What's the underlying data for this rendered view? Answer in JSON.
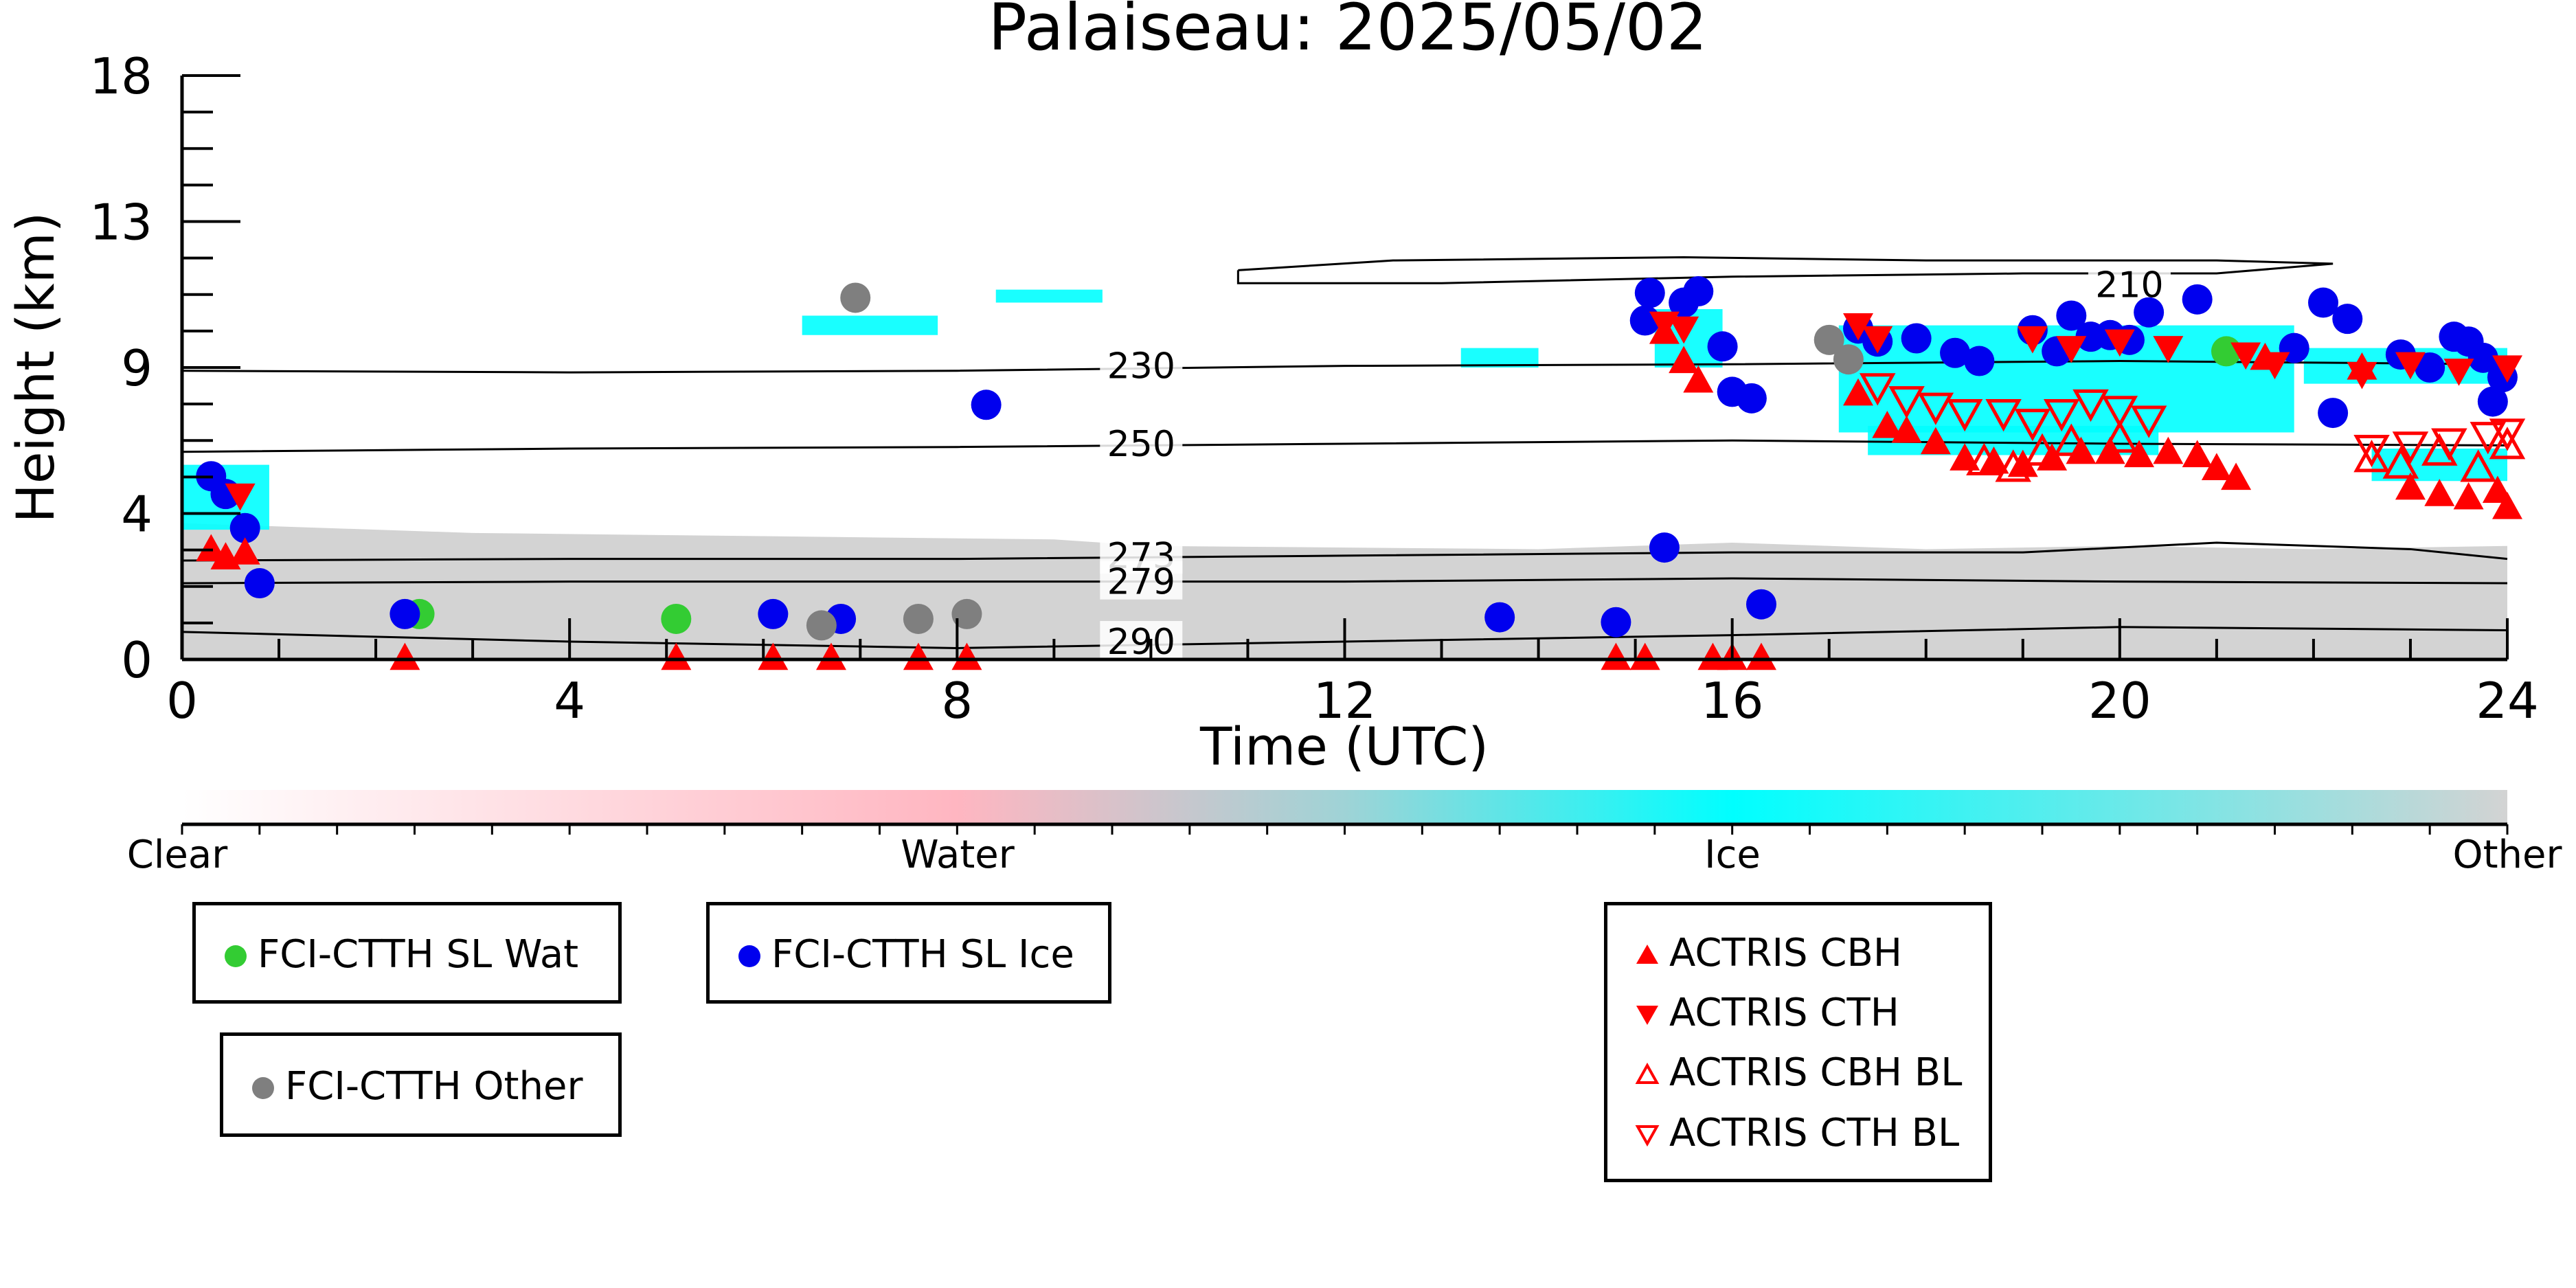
{
  "chart_data": {
    "type": "scatter",
    "title": "Palaiseau: 2025/05/02",
    "xlabel": "Time (UTC)",
    "ylabel": "Height (km)",
    "xlim": [
      0,
      24
    ],
    "ylim": [
      0,
      18
    ],
    "x_ticks": [
      "0",
      "4",
      "8",
      "12",
      "16",
      "20",
      "24"
    ],
    "y_ticks": [
      "0",
      "4",
      "9",
      "13",
      "18"
    ],
    "x_tick_values": [
      0,
      4,
      8,
      12,
      16,
      20,
      24
    ],
    "y_tick_values": [
      0,
      4.5,
      9,
      13.5,
      18
    ],
    "grid": false,
    "colorbar": {
      "labels": [
        "Clear",
        "Water",
        "Ice",
        "Other"
      ],
      "colors": [
        "#ffffff",
        "#ffb6c1",
        "#00ffff",
        "#d3d3d3"
      ]
    },
    "contours": [
      {
        "label": "210",
        "points": [
          [
            10.9,
            12.0
          ],
          [
            12.5,
            12.3
          ],
          [
            15.5,
            12.4
          ],
          [
            18.0,
            12.3
          ],
          [
            21.0,
            12.3
          ],
          [
            22.2,
            12.2
          ],
          [
            21.0,
            11.9
          ],
          [
            19.0,
            11.9
          ],
          [
            16.0,
            11.8
          ],
          [
            13.0,
            11.6
          ],
          [
            10.9,
            11.6
          ],
          [
            10.9,
            12.0
          ]
        ]
      },
      {
        "label": "230",
        "points": [
          [
            0,
            8.9
          ],
          [
            4,
            8.85
          ],
          [
            8,
            8.9
          ],
          [
            12,
            9.05
          ],
          [
            16,
            9.1
          ],
          [
            20,
            9.2
          ],
          [
            24,
            9.1
          ]
        ]
      },
      {
        "label": "250",
        "points": [
          [
            0,
            6.4
          ],
          [
            4,
            6.5
          ],
          [
            8,
            6.55
          ],
          [
            12,
            6.65
          ],
          [
            16,
            6.75
          ],
          [
            20,
            6.65
          ],
          [
            24,
            6.6
          ]
        ]
      },
      {
        "label": "273",
        "points": [
          [
            0,
            3.05
          ],
          [
            4,
            3.1
          ],
          [
            8,
            3.1
          ],
          [
            12,
            3.2
          ],
          [
            16,
            3.3
          ],
          [
            19,
            3.3
          ],
          [
            21,
            3.6
          ],
          [
            23,
            3.4
          ],
          [
            24,
            3.1
          ]
        ]
      },
      {
        "label": "279",
        "points": [
          [
            0,
            2.35
          ],
          [
            4,
            2.4
          ],
          [
            8,
            2.4
          ],
          [
            12,
            2.4
          ],
          [
            16,
            2.5
          ],
          [
            20,
            2.4
          ],
          [
            24,
            2.35
          ]
        ]
      },
      {
        "label": "290",
        "points": [
          [
            0,
            0.85
          ],
          [
            4,
            0.55
          ],
          [
            8,
            0.35
          ],
          [
            12,
            0.55
          ],
          [
            16,
            0.75
          ],
          [
            20,
            1.0
          ],
          [
            24,
            0.9
          ]
        ]
      }
    ],
    "series": [
      {
        "name": "FCI-CTTH SL Wat",
        "marker": "circle",
        "color": "#33cc33",
        "points": [
          [
            2.45,
            1.4
          ],
          [
            5.1,
            1.25
          ],
          [
            21.1,
            9.5
          ]
        ]
      },
      {
        "name": "FCI-CTTH SL Ice",
        "marker": "circle",
        "color": "#0000ee",
        "points": [
          [
            0.3,
            5.65
          ],
          [
            0.45,
            5.1
          ],
          [
            0.65,
            4.05
          ],
          [
            0.8,
            2.35
          ],
          [
            2.3,
            1.4
          ],
          [
            6.1,
            1.4
          ],
          [
            6.8,
            1.25
          ],
          [
            8.3,
            7.85
          ],
          [
            13.6,
            1.3
          ],
          [
            14.8,
            1.15
          ],
          [
            15.15,
            11.3
          ],
          [
            15.1,
            10.45
          ],
          [
            15.5,
            11.0
          ],
          [
            15.65,
            11.35
          ],
          [
            15.9,
            9.65
          ],
          [
            16.0,
            8.25
          ],
          [
            16.2,
            8.05
          ],
          [
            15.3,
            3.45
          ],
          [
            16.3,
            1.7
          ],
          [
            17.3,
            10.2
          ],
          [
            17.5,
            9.8
          ],
          [
            17.9,
            9.9
          ],
          [
            18.3,
            9.45
          ],
          [
            18.55,
            9.2
          ],
          [
            19.1,
            10.15
          ],
          [
            19.35,
            9.5
          ],
          [
            19.5,
            10.6
          ],
          [
            19.7,
            9.95
          ],
          [
            19.9,
            10.0
          ],
          [
            20.1,
            9.85
          ],
          [
            20.3,
            10.7
          ],
          [
            20.8,
            11.1
          ],
          [
            21.8,
            9.6
          ],
          [
            22.1,
            11.0
          ],
          [
            22.35,
            10.5
          ],
          [
            22.9,
            9.4
          ],
          [
            23.2,
            9.0
          ],
          [
            23.45,
            9.95
          ],
          [
            23.6,
            9.8
          ],
          [
            23.75,
            9.3
          ],
          [
            23.85,
            7.95
          ],
          [
            23.95,
            8.7
          ],
          [
            22.2,
            7.6
          ]
        ]
      },
      {
        "name": "FCI-CTTH Other",
        "marker": "circle",
        "color": "#7f7f7f",
        "points": [
          [
            6.95,
            11.15
          ],
          [
            6.6,
            1.05
          ],
          [
            7.6,
            1.25
          ],
          [
            8.1,
            1.4
          ],
          [
            17.0,
            9.85
          ],
          [
            17.2,
            9.25
          ]
        ]
      },
      {
        "name": "ACTRIS CBH",
        "marker": "triangle-up",
        "color": "#ff0000",
        "points": [
          [
            0.3,
            3.4
          ],
          [
            0.45,
            3.15
          ],
          [
            0.65,
            3.3
          ],
          [
            2.3,
            0.05
          ],
          [
            5.1,
            0.05
          ],
          [
            6.1,
            0.05
          ],
          [
            6.7,
            0.05
          ],
          [
            7.6,
            0.05
          ],
          [
            8.1,
            0.05
          ],
          [
            14.8,
            0.05
          ],
          [
            15.1,
            0.05
          ],
          [
            15.3,
            10.1
          ],
          [
            15.5,
            9.2
          ],
          [
            15.65,
            8.6
          ],
          [
            15.8,
            0.05
          ],
          [
            16.0,
            0.05
          ],
          [
            16.3,
            0.05
          ],
          [
            17.3,
            8.2
          ],
          [
            17.6,
            7.2
          ],
          [
            17.8,
            7.05
          ],
          [
            18.1,
            6.7
          ],
          [
            18.4,
            6.2
          ],
          [
            18.7,
            6.1
          ],
          [
            19.0,
            6.0
          ],
          [
            19.3,
            6.2
          ],
          [
            19.6,
            6.4
          ],
          [
            19.9,
            6.4
          ],
          [
            20.2,
            6.3
          ],
          [
            20.5,
            6.4
          ],
          [
            20.8,
            6.3
          ],
          [
            21.0,
            5.9
          ],
          [
            21.2,
            5.6
          ],
          [
            21.5,
            9.3
          ],
          [
            22.5,
            9.0
          ],
          [
            23.0,
            5.3
          ],
          [
            23.3,
            5.1
          ],
          [
            23.6,
            5.0
          ],
          [
            23.9,
            5.2
          ],
          [
            24.0,
            4.7
          ]
        ]
      },
      {
        "name": "ACTRIS CTH",
        "marker": "triangle-down",
        "color": "#ff0000",
        "points": [
          [
            0.6,
            5.05
          ],
          [
            15.3,
            10.35
          ],
          [
            15.5,
            10.2
          ],
          [
            17.3,
            10.3
          ],
          [
            17.5,
            9.9
          ],
          [
            19.1,
            9.9
          ],
          [
            19.5,
            9.6
          ],
          [
            20.0,
            9.8
          ],
          [
            20.5,
            9.6
          ],
          [
            21.3,
            9.4
          ],
          [
            21.6,
            9.1
          ],
          [
            22.5,
            8.8
          ],
          [
            23.0,
            9.1
          ],
          [
            23.5,
            8.9
          ],
          [
            24.0,
            9.0
          ]
        ]
      },
      {
        "name": "ACTRIS CBH BL",
        "marker": "triangle-up-open",
        "color": "#ff0000",
        "points": [
          [
            18.6,
            6.1
          ],
          [
            18.9,
            5.9
          ],
          [
            19.2,
            6.4
          ],
          [
            19.5,
            6.7
          ],
          [
            20.0,
            6.8
          ],
          [
            22.6,
            6.2
          ],
          [
            22.9,
            6.0
          ],
          [
            23.3,
            6.4
          ],
          [
            23.7,
            5.9
          ],
          [
            24.0,
            6.6
          ]
        ]
      },
      {
        "name": "ACTRIS CTH BL",
        "marker": "triangle-down-open",
        "color": "#ff0000",
        "points": [
          [
            17.5,
            8.4
          ],
          [
            17.8,
            8.0
          ],
          [
            18.1,
            7.8
          ],
          [
            18.4,
            7.6
          ],
          [
            18.8,
            7.6
          ],
          [
            19.1,
            7.3
          ],
          [
            19.4,
            7.6
          ],
          [
            19.7,
            7.9
          ],
          [
            20.0,
            7.7
          ],
          [
            20.3,
            7.4
          ],
          [
            22.6,
            6.5
          ],
          [
            23.0,
            6.6
          ],
          [
            23.4,
            6.7
          ],
          [
            23.8,
            6.9
          ],
          [
            24.0,
            7.0
          ]
        ]
      }
    ]
  }
}
